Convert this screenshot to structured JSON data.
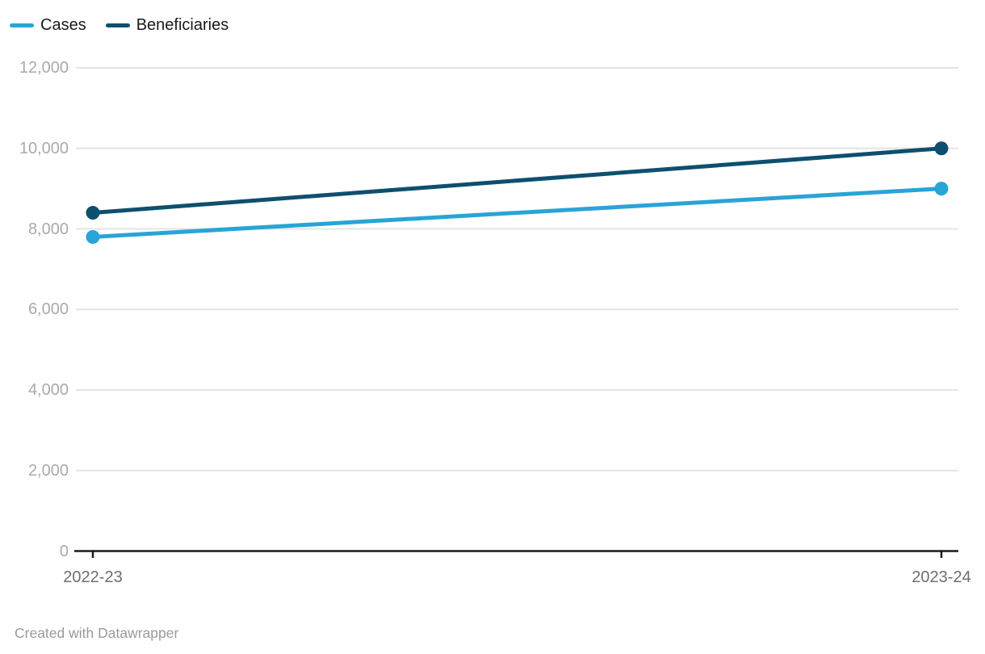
{
  "legend": {
    "items": [
      {
        "label": "Cases",
        "color": "#29a4d6"
      },
      {
        "label": "Beneficiaries",
        "color": "#0e4f6e"
      }
    ]
  },
  "chart_data": {
    "type": "line",
    "categories": [
      "2022-23",
      "2023-24"
    ],
    "series": [
      {
        "name": "Cases",
        "color": "#29a4d6",
        "values": [
          7800,
          9000
        ]
      },
      {
        "name": "Beneficiaries",
        "color": "#0e4f6e",
        "values": [
          8400,
          10000
        ]
      }
    ],
    "title": "",
    "xlabel": "",
    "ylabel": "",
    "ylim": [
      0,
      12000
    ],
    "ytick_values": [
      0,
      2000,
      4000,
      6000,
      8000,
      10000,
      12000
    ],
    "ytick_labels": [
      "0",
      "2,000",
      "4,000",
      "6,000",
      "8,000",
      "10,000",
      "12,000"
    ],
    "grid": true,
    "legend_position": "top-left"
  },
  "footer": {
    "credit": "Created with Datawrapper"
  },
  "colors": {
    "grid": "#e4e4e4",
    "axis": "#1a1a1a",
    "y_label": "#aaaaaa",
    "x_label": "#6e6e6e",
    "footer": "#9a9a9a",
    "background": "#ffffff"
  }
}
